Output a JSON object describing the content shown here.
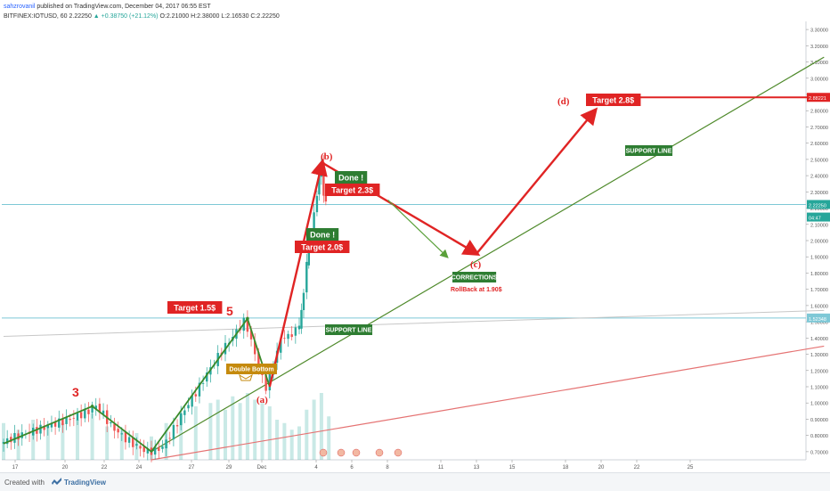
{
  "header": {
    "author": "sahzrovanil",
    "published": "published on TradingView.com, December 04, 2017 06:55 EST",
    "symbol": "BITFINEX:IOTUSD, 60",
    "last": "2.22250",
    "change": "▲ +0.38750 (+21.12%)",
    "ohlc": "O:2.21000 H:2.38000 L:2.16530 C:2.22250"
  },
  "footer": {
    "created_with": "Created with",
    "brand": "TradingView"
  },
  "colors": {
    "bull": "#26a69a",
    "bear": "#ef5350",
    "red": "#e02424",
    "green": "#3a8a2a",
    "support_line": "#4f8a2b",
    "cyan": "#7ec8d6",
    "gray_line": "#c7c7c7",
    "label_green": "#2e7d32",
    "label_red": "#e02424",
    "label_orange": "#c58a0c"
  },
  "chart_data": {
    "type": "candlestick",
    "symbol": "BITFINEX:IOTUSD",
    "interval": "60",
    "ylim": [
      0.65,
      3.35
    ],
    "y_ticks": [
      "0.70000",
      "0.80000",
      "0.90000",
      "1.00000",
      "1.10000",
      "1.20000",
      "1.30000",
      "1.40000",
      "1.50000",
      "1.60000",
      "1.70000",
      "1.80000",
      "1.90000",
      "2.00000",
      "2.10000",
      "2.20000",
      "2.30000",
      "2.40000",
      "2.50000",
      "2.60000",
      "2.70000",
      "2.80000",
      "2.90000",
      "3.00000",
      "3.10000",
      "3.20000",
      "3.30000"
    ],
    "x_ticks": [
      "17",
      "20",
      "22",
      "24",
      "27",
      "29",
      "Dec",
      "4",
      "6",
      "8",
      "11",
      "13",
      "15",
      "18",
      "20",
      "22",
      "25"
    ],
    "price_tags": [
      {
        "value": 2.8822,
        "label": "2.88221",
        "color": "#e02424"
      },
      {
        "value": 2.2225,
        "label": "2.22250",
        "color": "#26a69a"
      },
      {
        "value": 2.145,
        "label": "04:47",
        "color": "#26a69a"
      },
      {
        "value": 1.5234,
        "label": "1.52348",
        "color": "#7ec8d6"
      }
    ],
    "price_path": [
      [
        0,
        0.75
      ],
      [
        2,
        0.79
      ],
      [
        4,
        0.82
      ],
      [
        6,
        0.85
      ],
      [
        8,
        0.88
      ],
      [
        10,
        0.91
      ],
      [
        12,
        0.95
      ],
      [
        13,
        0.98
      ],
      [
        14,
        0.93
      ],
      [
        15,
        0.86
      ],
      [
        16,
        0.82
      ],
      [
        17,
        0.78
      ],
      [
        18,
        0.75
      ],
      [
        19,
        0.72
      ],
      [
        20,
        0.7
      ],
      [
        21,
        0.71
      ],
      [
        22,
        0.73
      ],
      [
        23,
        0.8
      ],
      [
        24,
        0.88
      ],
      [
        25,
        0.96
      ],
      [
        26,
        1.03
      ],
      [
        27,
        1.1
      ],
      [
        28,
        1.18
      ],
      [
        29,
        1.25
      ],
      [
        30,
        1.32
      ],
      [
        31,
        1.38
      ],
      [
        32,
        1.44
      ],
      [
        33,
        1.5
      ],
      [
        33.5,
        1.46
      ],
      [
        34,
        1.38
      ],
      [
        34.5,
        1.3
      ],
      [
        35,
        1.22
      ],
      [
        35.5,
        1.15
      ],
      [
        36,
        1.1
      ],
      [
        36.5,
        1.16
      ],
      [
        37,
        1.25
      ],
      [
        37.5,
        1.32
      ],
      [
        38,
        1.38
      ],
      [
        38.5,
        1.42
      ],
      [
        39,
        1.4
      ],
      [
        39.5,
        1.43
      ],
      [
        40,
        1.45
      ],
      [
        40.3,
        1.48
      ],
      [
        40.6,
        1.55
      ],
      [
        41,
        1.7
      ],
      [
        41.3,
        1.85
      ],
      [
        41.6,
        1.95
      ],
      [
        42,
        2.02
      ],
      [
        42.4,
        2.15
      ],
      [
        42.7,
        2.3
      ],
      [
        43,
        2.4
      ],
      [
        43.3,
        2.46
      ],
      [
        43.6,
        2.3
      ],
      [
        44,
        2.22
      ]
    ],
    "volume": [
      [
        0,
        0.55
      ],
      [
        2,
        0.45
      ],
      [
        4,
        0.6
      ],
      [
        6,
        0.5
      ],
      [
        8,
        0.55
      ],
      [
        10,
        0.6
      ],
      [
        12,
        0.7
      ],
      [
        14,
        0.5
      ],
      [
        16,
        0.45
      ],
      [
        18,
        0.4
      ],
      [
        20,
        0.35
      ],
      [
        22,
        0.55
      ],
      [
        24,
        0.7
      ],
      [
        26,
        0.8
      ],
      [
        28,
        0.85
      ],
      [
        29,
        0.9
      ],
      [
        30,
        0.75
      ],
      [
        31,
        0.95
      ],
      [
        32,
        0.85
      ],
      [
        33,
        1.0
      ],
      [
        34,
        0.9
      ],
      [
        35,
        0.85
      ],
      [
        36,
        0.8
      ],
      [
        37,
        0.6
      ],
      [
        38,
        0.55
      ],
      [
        39,
        0.45
      ],
      [
        40,
        0.5
      ],
      [
        41,
        0.75
      ],
      [
        42,
        0.9
      ],
      [
        43,
        1.0
      ],
      [
        44,
        0.65
      ]
    ],
    "drawings": {
      "green_wave": [
        [
          0,
          0.75
        ],
        [
          12,
          0.98
        ],
        [
          20,
          0.7
        ],
        [
          33,
          1.52
        ],
        [
          36,
          1.1
        ]
      ],
      "red_projection": [
        [
          36,
          1.1
        ],
        [
          43.1,
          2.48
        ],
        [
          64,
          1.92
        ],
        [
          80,
          2.8
        ]
      ],
      "support_line": [
        [
          20,
          0.7
        ],
        [
          111,
          3.13
        ]
      ],
      "red_trendline": [
        [
          20,
          0.65
        ],
        [
          111,
          1.35
        ]
      ],
      "gray_trendline": [
        [
          0,
          1.41
        ],
        [
          111,
          1.57
        ]
      ],
      "cyan_levels": [
        1.523,
        2.2225
      ],
      "arrow_green": [
        [
          52,
          2.25
        ],
        [
          60,
          1.9
        ]
      ],
      "target_line": {
        "x": [
          79,
          111
        ],
        "y": 2.8822
      }
    },
    "labels": {
      "wave_3": "3",
      "wave_5": "5",
      "wave_a": "(a)",
      "wave_b": "(b)",
      "wave_c": "(c)",
      "wave_d": "(d)",
      "target_15": "Target 1.5$",
      "target_20": "Target 2.0$",
      "target_23": "Target 2.3$",
      "target_28": "Target 2.8$",
      "done_1": "Done !",
      "done_2": "Done !",
      "support_1": "SUPPORT LINE",
      "support_2": "SUPPORT LINE",
      "corrections": "CORRECTIONS",
      "rollback": "RollBack at 1.90$",
      "double_bottom": "Double Bottom"
    }
  }
}
